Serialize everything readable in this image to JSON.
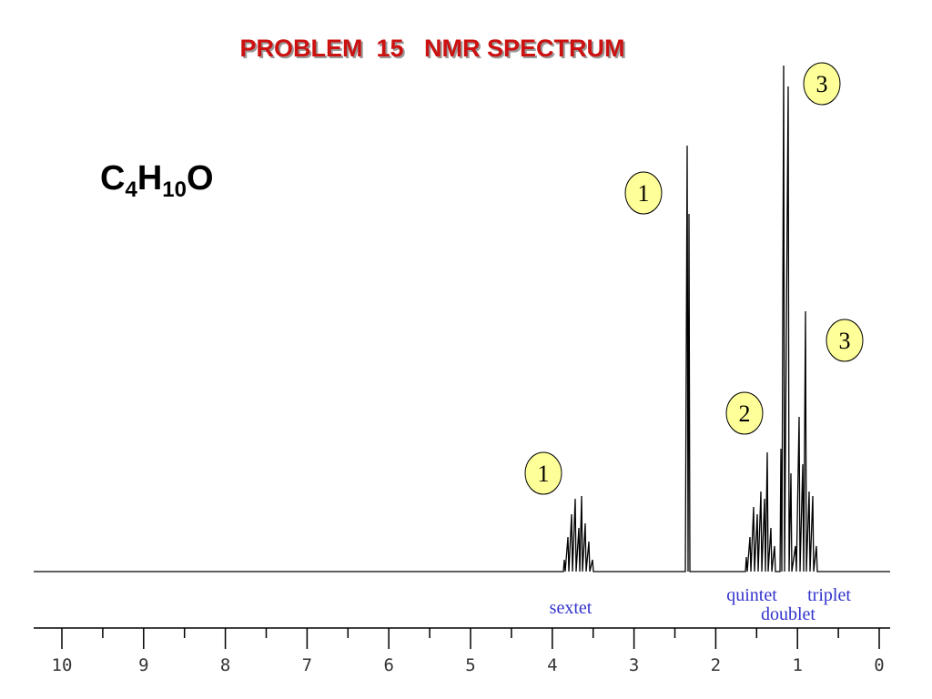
{
  "title": "PROBLEM  15   NMR SPECTRUM",
  "formula": [
    "C",
    "4",
    "H",
    "10",
    "O"
  ],
  "axis": {
    "ticks": [
      10,
      9,
      8,
      7,
      6,
      5,
      4,
      3,
      2,
      1,
      0
    ]
  },
  "integrations": [
    "1",
    "1",
    "2",
    "3",
    "3"
  ],
  "multiplicities": [
    "sextet",
    "quintet",
    "doublet",
    "triplet"
  ]
}
